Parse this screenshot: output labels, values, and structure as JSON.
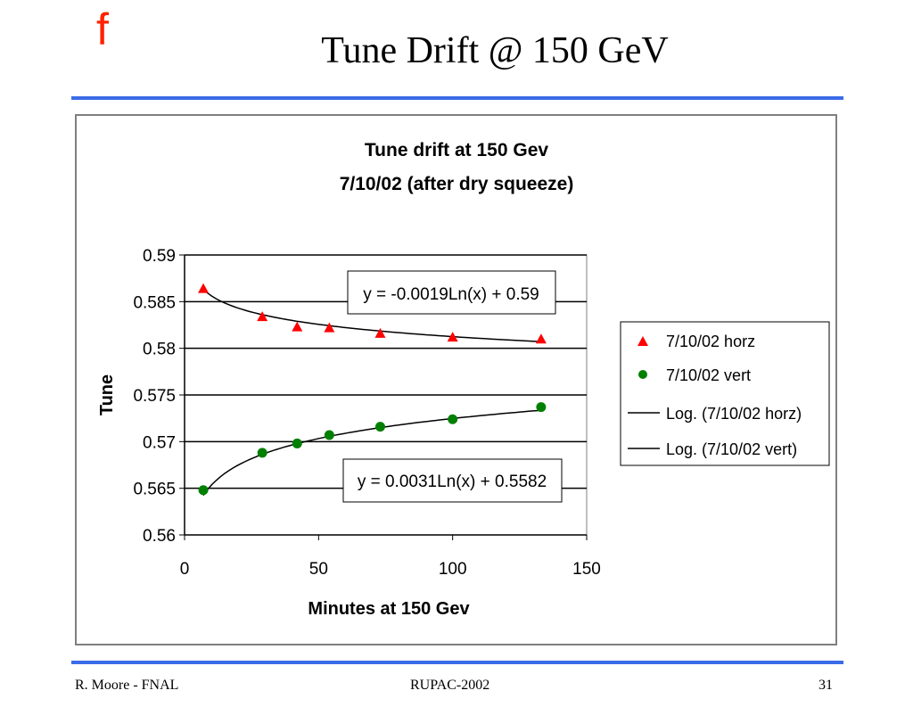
{
  "slide": {
    "title": "Tune Drift @ 150 GeV",
    "logo_glyph": "f",
    "logo_color": "#ff2200",
    "rule_color": "#3b6ce8",
    "footer_left": "R. Moore - FNAL",
    "footer_center": "RUPAC-2002",
    "footer_right": "31"
  },
  "chart_data": {
    "type": "scatter",
    "title": "Tune drift at 150 Gev",
    "subtitle": "7/10/02 (after dry squeeze)",
    "xlabel": "Minutes at 150 Gev",
    "ylabel": "Tune",
    "xlim": [
      0,
      150
    ],
    "ylim": [
      0.56,
      0.59
    ],
    "xticks": [
      "0",
      "50",
      "100",
      "150"
    ],
    "yticks": [
      "0.56",
      "0.565",
      "0.57",
      "0.575",
      "0.58",
      "0.585",
      "0.59"
    ],
    "grid": "horizontal",
    "legend_position": "right",
    "series": [
      {
        "name": "7/10/02 horz",
        "marker": "triangle",
        "color": "#ff0000",
        "x": [
          7,
          29,
          42,
          54,
          73,
          100,
          133
        ],
        "y": [
          0.5864,
          0.5834,
          0.5823,
          0.5822,
          0.5816,
          0.5812,
          0.581
        ]
      },
      {
        "name": "7/10/02 vert",
        "marker": "circle",
        "color": "#008000",
        "x": [
          7,
          29,
          42,
          54,
          73,
          100,
          133
        ],
        "y": [
          0.5648,
          0.5688,
          0.5698,
          0.5707,
          0.5716,
          0.5724,
          0.5737
        ]
      }
    ],
    "trendlines": [
      {
        "name": "Log. (7/10/02 horz)",
        "a": -0.0019,
        "b": 0.59,
        "equation": "y = -0.0019Ln(x) + 0.59"
      },
      {
        "name": "Log. (7/10/02 vert)",
        "a": 0.0031,
        "b": 0.5582,
        "equation": "y = 0.0031Ln(x) + 0.5582"
      }
    ]
  }
}
